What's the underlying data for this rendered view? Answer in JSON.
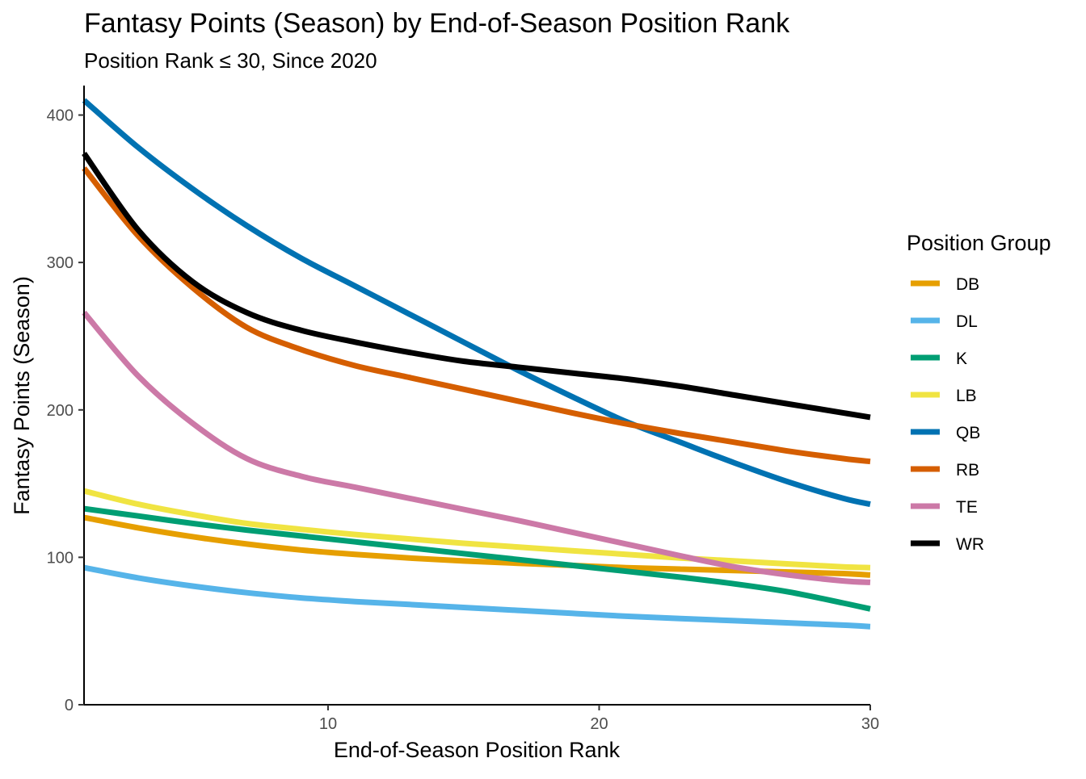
{
  "chart_data": {
    "type": "line",
    "title": "Fantasy Points (Season) by End-of-Season Position Rank",
    "subtitle": "Position Rank ≤ 30, Since 2020",
    "xlabel": "End-of-Season Position Rank",
    "ylabel": "Fantasy Points (Season)",
    "xlim": [
      1,
      30
    ],
    "ylim": [
      0,
      420
    ],
    "x_ticks": [
      10,
      20,
      30
    ],
    "y_ticks": [
      0,
      100,
      200,
      300,
      400
    ],
    "grid": false,
    "legend": {
      "title": "Position Group",
      "placement": "right"
    },
    "x": [
      1,
      3,
      5,
      7,
      9,
      11,
      13,
      15,
      17,
      19,
      21,
      23,
      25,
      27,
      29,
      30
    ],
    "series": [
      {
        "name": "DB",
        "color": "#E69F00",
        "values": [
          127,
          120,
          114,
          109,
          105,
          102,
          99.5,
          97.5,
          96,
          94.5,
          93,
          92,
          91,
          90,
          89,
          88
        ]
      },
      {
        "name": "DL",
        "color": "#56B4E9",
        "values": [
          93,
          86,
          80.5,
          76,
          72.5,
          70,
          68,
          66,
          64,
          62,
          60,
          58.5,
          57,
          55.5,
          54,
          53
        ]
      },
      {
        "name": "K",
        "color": "#009E73",
        "values": [
          133,
          128,
          123,
          118.5,
          114.5,
          110.5,
          106.5,
          102.5,
          98.5,
          94.5,
          90.5,
          86.5,
          82,
          76.5,
          69,
          65
        ]
      },
      {
        "name": "LB",
        "color": "#F0E442",
        "values": [
          145,
          136,
          129,
          123,
          119,
          115.5,
          112.5,
          109.5,
          107,
          104.5,
          102,
          99.5,
          97.5,
          95.5,
          93.5,
          93
        ]
      },
      {
        "name": "QB",
        "color": "#0072B2",
        "values": [
          410,
          378,
          350,
          325,
          303,
          284,
          265,
          246,
          227,
          209,
          192,
          178,
          164,
          151,
          140,
          136
        ]
      },
      {
        "name": "RB",
        "color": "#D55E00",
        "values": [
          364,
          318,
          283,
          256,
          241,
          230,
          222,
          214,
          206,
          198,
          190.5,
          184,
          178,
          172,
          167,
          165
        ]
      },
      {
        "name": "TE",
        "color": "#CC79A7",
        "values": [
          266,
          223,
          191,
          167,
          155,
          147.5,
          140,
          132.5,
          125,
          117,
          109,
          101,
          93.5,
          88,
          84,
          83
        ]
      },
      {
        "name": "WR",
        "color": "#000000",
        "values": [
          374,
          322,
          287,
          266,
          254,
          246,
          239,
          233,
          229,
          225,
          221,
          216,
          210,
          204,
          198,
          195
        ]
      }
    ]
  }
}
